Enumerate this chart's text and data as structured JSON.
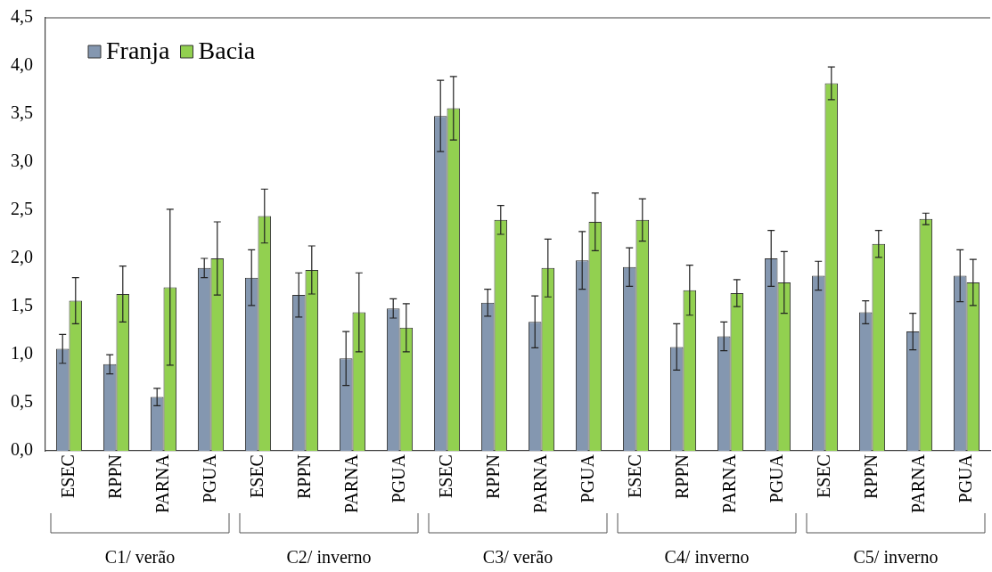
{
  "chart_data": {
    "type": "bar",
    "categories": [
      "ESEC",
      "RPPN",
      "PARNA",
      "PGUA",
      "ESEC",
      "RPPN",
      "PARNA",
      "PGUA",
      "ESEC",
      "RPPN",
      "PARNA",
      "PGUA",
      "ESEC",
      "RPPN",
      "PARNA",
      "PGUA",
      "ESEC",
      "RPPN",
      "PARNA",
      "PGUA"
    ],
    "series": [
      {
        "name": "Franja",
        "color": "#8497b0",
        "values": [
          1.06,
          0.9,
          0.56,
          1.9,
          1.8,
          1.62,
          0.96,
          1.48,
          3.48,
          1.54,
          1.34,
          1.98,
          1.91,
          1.08,
          1.19,
          2.0,
          1.82,
          1.44,
          1.24,
          1.82
        ],
        "errors": [
          0.15,
          0.1,
          0.09,
          0.1,
          0.29,
          0.23,
          0.28,
          0.1,
          0.37,
          0.14,
          0.27,
          0.3,
          0.2,
          0.24,
          0.15,
          0.29,
          0.15,
          0.12,
          0.19,
          0.27
        ]
      },
      {
        "name": "Bacia",
        "color": "#92d050",
        "values": [
          1.56,
          1.63,
          1.7,
          2.0,
          2.44,
          1.88,
          1.44,
          1.28,
          3.56,
          2.4,
          1.9,
          2.38,
          2.4,
          1.67,
          1.64,
          1.75,
          3.82,
          2.15,
          2.41,
          1.75
        ],
        "errors": [
          0.24,
          0.29,
          0.81,
          0.38,
          0.28,
          0.25,
          0.41,
          0.25,
          0.33,
          0.15,
          0.3,
          0.3,
          0.22,
          0.26,
          0.14,
          0.32,
          0.17,
          0.14,
          0.06,
          0.24
        ]
      }
    ],
    "ylim": [
      0,
      4.5
    ],
    "yticks": [
      {
        "value": 0,
        "label": "0,0"
      },
      {
        "value": 0.5,
        "label": "0,5"
      },
      {
        "value": 1,
        "label": "1,0"
      },
      {
        "value": 1.5,
        "label": "1,5"
      },
      {
        "value": 2,
        "label": "2,0"
      },
      {
        "value": 2.5,
        "label": "2,5"
      },
      {
        "value": 3,
        "label": "3,0"
      },
      {
        "value": 3.5,
        "label": "3,5"
      },
      {
        "value": 4,
        "label": "4,0"
      },
      {
        "value": 4.5,
        "label": "4,5"
      }
    ],
    "annotations": [
      "C1/ verão",
      "C2/ inverno",
      "C3/ verão",
      "C4/ inverno",
      "C5/ inverno"
    ],
    "legend": "top left",
    "grid": false
  }
}
